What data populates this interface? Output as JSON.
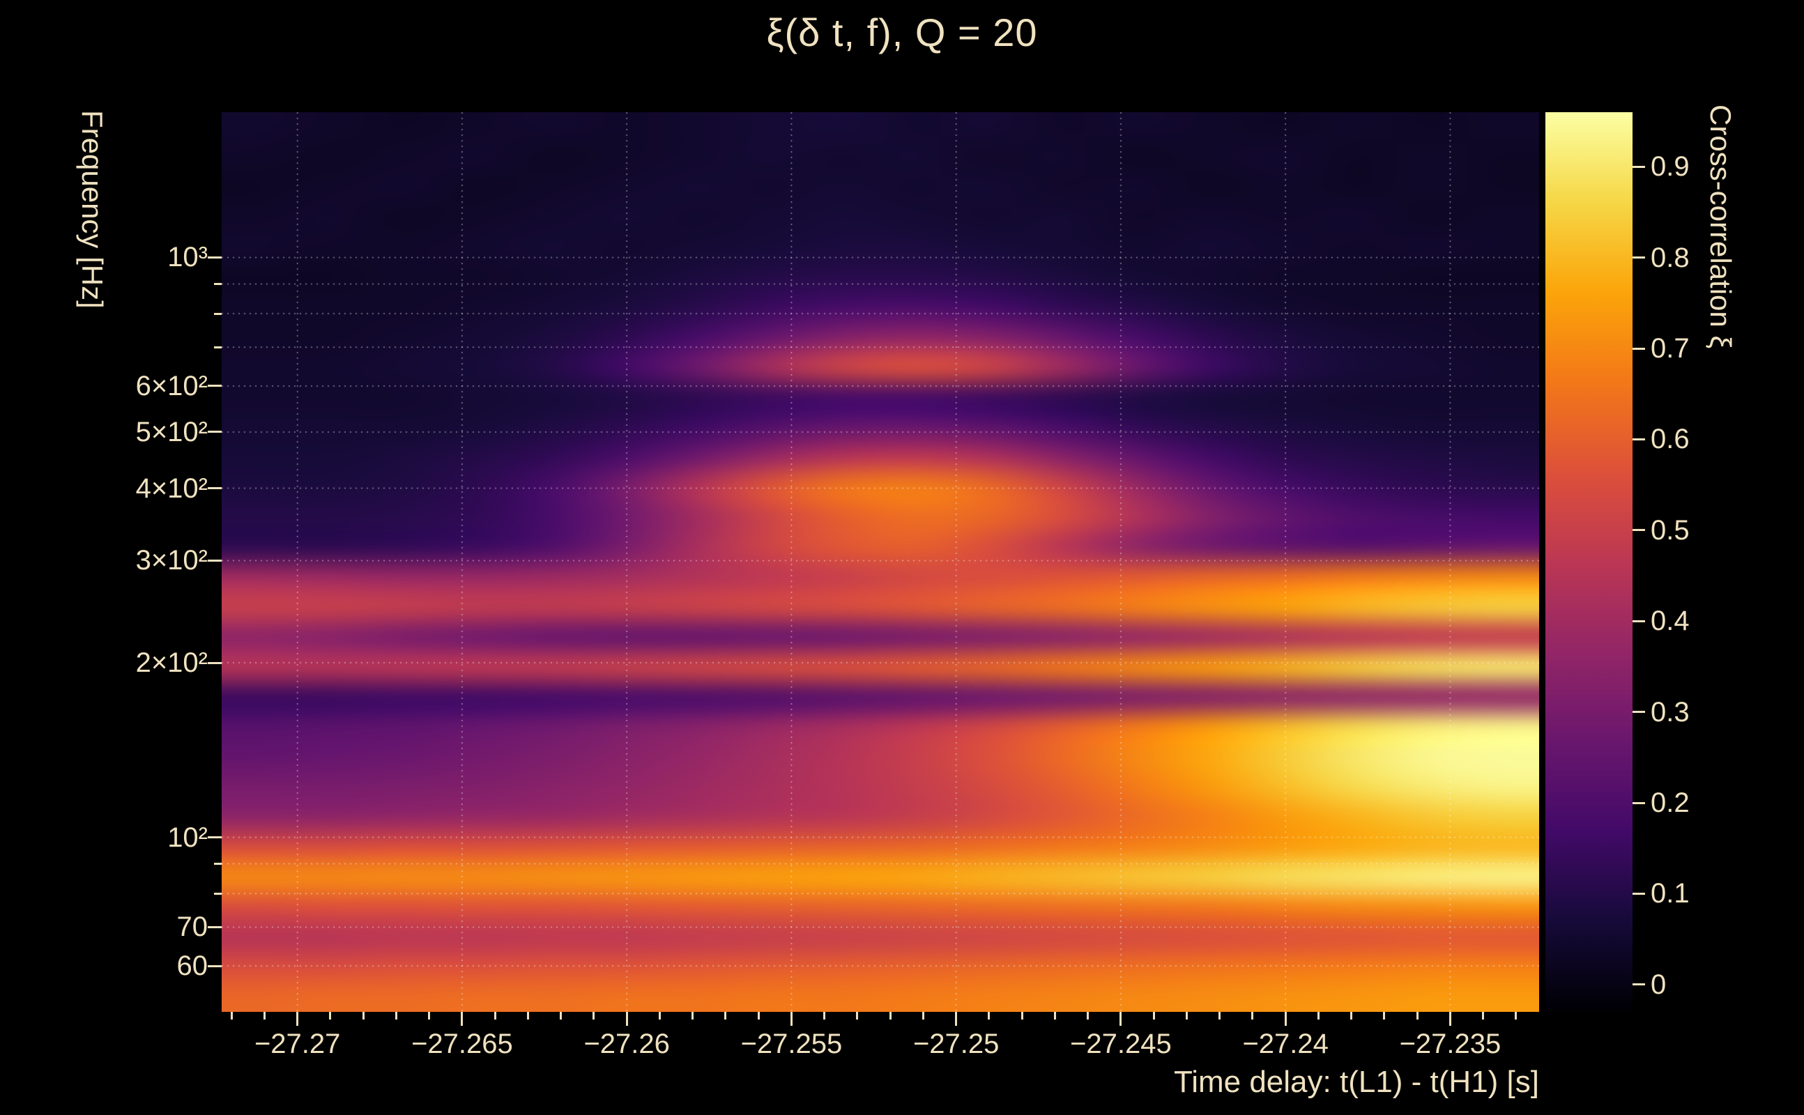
{
  "colors": {
    "background": "#000000",
    "text": "#f0e2c0",
    "grid": "rgba(255,255,255,0.5)"
  },
  "chart_data": {
    "type": "heatmap",
    "title": "ξ(δ t, f), Q = 20",
    "xlabel": "Time delay: t(L1) - t(H1) [s]",
    "ylabel": "Frequency [Hz]",
    "zlabel": "Cross-correlation ξ",
    "colormap": "inferno",
    "x_range": [
      -27.2723,
      -27.2323
    ],
    "y_range_hz": [
      50,
      1780
    ],
    "y_scale": "log",
    "z_range": [
      -0.03,
      0.96
    ],
    "x_ticks": [
      {
        "value": -27.27,
        "label": "−27.27"
      },
      {
        "value": -27.265,
        "label": "−27.265"
      },
      {
        "value": -27.26,
        "label": "−27.26"
      },
      {
        "value": -27.255,
        "label": "−27.255"
      },
      {
        "value": -27.25,
        "label": "−27.25"
      },
      {
        "value": -27.245,
        "label": "−27.245"
      },
      {
        "value": -27.24,
        "label": "−27.24"
      },
      {
        "value": -27.235,
        "label": "−27.235"
      }
    ],
    "x_minor_step": 0.001,
    "y_ticks": [
      {
        "value": 1000,
        "label": "10³"
      },
      {
        "value": 600,
        "label": "6×10²"
      },
      {
        "value": 500,
        "label": "5×10²"
      },
      {
        "value": 400,
        "label": "4×10²"
      },
      {
        "value": 300,
        "label": "3×10²"
      },
      {
        "value": 200,
        "label": "2×10²"
      },
      {
        "value": 100,
        "label": "10²"
      },
      {
        "value": 70,
        "label": "70"
      },
      {
        "value": 60,
        "label": "60"
      }
    ],
    "y_grid_hz": [
      60,
      70,
      80,
      90,
      100,
      200,
      300,
      400,
      500,
      600,
      700,
      800,
      900,
      1000
    ],
    "cbar_ticks": [
      {
        "value": 0,
        "label": "0"
      },
      {
        "value": 0.1,
        "label": "0.1"
      },
      {
        "value": 0.2,
        "label": "0.2"
      },
      {
        "value": 0.3,
        "label": "0.3"
      },
      {
        "value": 0.4,
        "label": "0.4"
      },
      {
        "value": 0.5,
        "label": "0.5"
      },
      {
        "value": 0.6,
        "label": "0.6"
      },
      {
        "value": 0.7,
        "label": "0.7"
      },
      {
        "value": 0.8,
        "label": "0.8"
      },
      {
        "value": 0.9,
        "label": "0.9"
      }
    ],
    "row_order": "bottom-to-top",
    "x_centers": [
      -27.2712,
      -27.269,
      -27.2668,
      -27.2645,
      -27.2623,
      -27.2601,
      -27.2579,
      -27.2557,
      -27.2534,
      -27.2512,
      -27.249,
      -27.2468,
      -27.2445,
      -27.2423,
      -27.2401,
      -27.2379,
      -27.2357,
      -27.2334
    ],
    "y_centers_hz": [
      53,
      60,
      67,
      76,
      86,
      96,
      108,
      122,
      138,
      155,
      175,
      197,
      221,
      250,
      281,
      317,
      357,
      402,
      452,
      510,
      574,
      647,
      728,
      820,
      924,
      1041,
      1173,
      1321,
      1488,
      1676
    ],
    "values": [
      [
        0.62,
        0.63,
        0.63,
        0.64,
        0.64,
        0.65,
        0.65,
        0.66,
        0.66,
        0.67,
        0.68,
        0.69,
        0.7,
        0.71,
        0.72,
        0.73,
        0.74,
        0.74
      ],
      [
        0.55,
        0.55,
        0.56,
        0.56,
        0.57,
        0.57,
        0.58,
        0.59,
        0.6,
        0.61,
        0.62,
        0.63,
        0.64,
        0.65,
        0.66,
        0.67,
        0.68,
        0.68
      ],
      [
        0.45,
        0.45,
        0.46,
        0.46,
        0.47,
        0.47,
        0.48,
        0.49,
        0.5,
        0.51,
        0.52,
        0.53,
        0.54,
        0.55,
        0.56,
        0.57,
        0.58,
        0.58
      ],
      [
        0.55,
        0.56,
        0.56,
        0.57,
        0.57,
        0.58,
        0.59,
        0.6,
        0.61,
        0.62,
        0.63,
        0.64,
        0.65,
        0.66,
        0.68,
        0.7,
        0.71,
        0.72
      ],
      [
        0.7,
        0.7,
        0.71,
        0.71,
        0.72,
        0.73,
        0.74,
        0.75,
        0.76,
        0.77,
        0.79,
        0.81,
        0.83,
        0.85,
        0.88,
        0.9,
        0.92,
        0.93
      ],
      [
        0.55,
        0.55,
        0.56,
        0.56,
        0.57,
        0.58,
        0.59,
        0.6,
        0.61,
        0.62,
        0.64,
        0.66,
        0.68,
        0.71,
        0.74,
        0.77,
        0.79,
        0.8
      ],
      [
        0.35,
        0.35,
        0.36,
        0.37,
        0.38,
        0.4,
        0.42,
        0.44,
        0.46,
        0.49,
        0.53,
        0.58,
        0.63,
        0.68,
        0.74,
        0.79,
        0.83,
        0.85
      ],
      [
        0.3,
        0.3,
        0.31,
        0.32,
        0.34,
        0.36,
        0.39,
        0.42,
        0.45,
        0.49,
        0.54,
        0.6,
        0.67,
        0.74,
        0.81,
        0.87,
        0.91,
        0.93
      ],
      [
        0.25,
        0.26,
        0.27,
        0.29,
        0.31,
        0.34,
        0.37,
        0.41,
        0.45,
        0.5,
        0.56,
        0.63,
        0.7,
        0.77,
        0.84,
        0.9,
        0.94,
        0.95
      ],
      [
        0.22,
        0.23,
        0.24,
        0.26,
        0.28,
        0.31,
        0.34,
        0.38,
        0.42,
        0.47,
        0.53,
        0.6,
        0.67,
        0.74,
        0.81,
        0.87,
        0.91,
        0.93
      ],
      [
        0.15,
        0.15,
        0.16,
        0.16,
        0.17,
        0.18,
        0.19,
        0.2,
        0.22,
        0.24,
        0.26,
        0.28,
        0.3,
        0.32,
        0.34,
        0.35,
        0.36,
        0.36
      ],
      [
        0.45,
        0.45,
        0.46,
        0.47,
        0.48,
        0.5,
        0.52,
        0.54,
        0.56,
        0.59,
        0.62,
        0.66,
        0.7,
        0.74,
        0.79,
        0.84,
        0.88,
        0.9
      ],
      [
        0.35,
        0.33,
        0.3,
        0.28,
        0.26,
        0.25,
        0.25,
        0.26,
        0.27,
        0.29,
        0.31,
        0.33,
        0.36,
        0.39,
        0.42,
        0.45,
        0.47,
        0.48
      ],
      [
        0.5,
        0.5,
        0.49,
        0.48,
        0.48,
        0.49,
        0.51,
        0.53,
        0.55,
        0.58,
        0.61,
        0.64,
        0.68,
        0.72,
        0.76,
        0.8,
        0.83,
        0.85
      ],
      [
        0.4,
        0.39,
        0.38,
        0.38,
        0.39,
        0.41,
        0.44,
        0.47,
        0.5,
        0.53,
        0.55,
        0.57,
        0.59,
        0.62,
        0.64,
        0.67,
        0.69,
        0.7
      ],
      [
        0.12,
        0.12,
        0.13,
        0.15,
        0.2,
        0.3,
        0.42,
        0.52,
        0.58,
        0.6,
        0.55,
        0.45,
        0.35,
        0.28,
        0.24,
        0.22,
        0.24,
        0.26
      ],
      [
        0.1,
        0.1,
        0.11,
        0.13,
        0.18,
        0.28,
        0.4,
        0.52,
        0.6,
        0.64,
        0.62,
        0.55,
        0.44,
        0.33,
        0.25,
        0.2,
        0.18,
        0.17
      ],
      [
        0.08,
        0.08,
        0.09,
        0.12,
        0.18,
        0.3,
        0.45,
        0.58,
        0.66,
        0.68,
        0.63,
        0.52,
        0.38,
        0.26,
        0.18,
        0.14,
        0.12,
        0.11
      ],
      [
        0.07,
        0.07,
        0.08,
        0.1,
        0.13,
        0.19,
        0.28,
        0.38,
        0.45,
        0.47,
        0.43,
        0.34,
        0.25,
        0.17,
        0.12,
        0.1,
        0.09,
        0.08
      ],
      [
        0.06,
        0.06,
        0.06,
        0.07,
        0.09,
        0.12,
        0.16,
        0.21,
        0.25,
        0.26,
        0.23,
        0.18,
        0.13,
        0.1,
        0.08,
        0.07,
        0.06,
        0.06
      ],
      [
        0.05,
        0.05,
        0.05,
        0.06,
        0.07,
        0.09,
        0.12,
        0.15,
        0.17,
        0.17,
        0.15,
        0.12,
        0.09,
        0.07,
        0.06,
        0.05,
        0.05,
        0.05
      ],
      [
        0.05,
        0.05,
        0.06,
        0.07,
        0.1,
        0.17,
        0.28,
        0.42,
        0.52,
        0.56,
        0.52,
        0.4,
        0.27,
        0.16,
        0.1,
        0.07,
        0.06,
        0.05
      ],
      [
        0.04,
        0.04,
        0.05,
        0.06,
        0.08,
        0.12,
        0.18,
        0.26,
        0.33,
        0.36,
        0.33,
        0.26,
        0.18,
        0.12,
        0.08,
        0.06,
        0.05,
        0.04
      ],
      [
        0.04,
        0.04,
        0.04,
        0.05,
        0.06,
        0.08,
        0.11,
        0.15,
        0.18,
        0.19,
        0.17,
        0.13,
        0.1,
        0.07,
        0.05,
        0.04,
        0.04,
        0.04
      ],
      [
        0.03,
        0.03,
        0.04,
        0.04,
        0.05,
        0.06,
        0.08,
        0.1,
        0.11,
        0.11,
        0.1,
        0.08,
        0.06,
        0.05,
        0.04,
        0.04,
        0.03,
        0.03
      ],
      [
        0.05,
        0.04,
        0.04,
        0.05,
        0.06,
        0.05,
        0.06,
        0.07,
        0.08,
        0.08,
        0.07,
        0.06,
        0.05,
        0.06,
        0.05,
        0.04,
        0.05,
        0.04
      ],
      [
        0.04,
        0.05,
        0.03,
        0.04,
        0.05,
        0.06,
        0.05,
        0.06,
        0.07,
        0.06,
        0.05,
        0.06,
        0.04,
        0.05,
        0.04,
        0.05,
        0.03,
        0.04
      ],
      [
        0.03,
        0.04,
        0.05,
        0.03,
        0.04,
        0.05,
        0.06,
        0.05,
        0.06,
        0.05,
        0.06,
        0.04,
        0.05,
        0.03,
        0.04,
        0.03,
        0.04,
        0.03
      ],
      [
        0.04,
        0.03,
        0.04,
        0.05,
        0.03,
        0.04,
        0.05,
        0.06,
        0.05,
        0.06,
        0.04,
        0.05,
        0.03,
        0.04,
        0.05,
        0.03,
        0.04,
        0.03
      ],
      [
        0.05,
        0.04,
        0.03,
        0.04,
        0.05,
        0.04,
        0.05,
        0.06,
        0.07,
        0.05,
        0.06,
        0.04,
        0.05,
        0.04,
        0.03,
        0.04,
        0.03,
        0.04
      ]
    ]
  }
}
